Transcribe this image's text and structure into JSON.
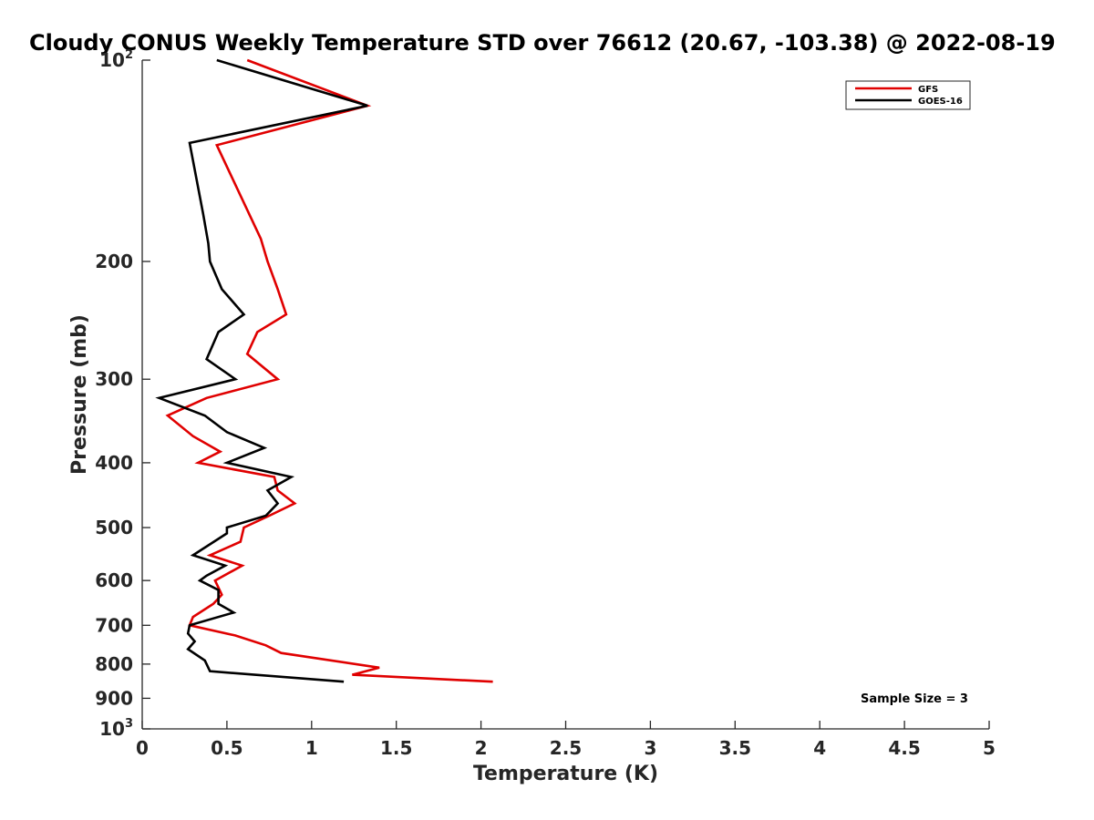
{
  "chart_data": {
    "type": "line",
    "title": "Cloudy CONUS Weekly Temperature STD over 76612 (20.67, -103.38) @ 2022-08-19",
    "xlabel": "Temperature (K)",
    "ylabel": "Pressure (mb)",
    "xlim": [
      0,
      5
    ],
    "ylim": [
      100,
      1000
    ],
    "y_scale": "log",
    "y_reversed": true,
    "grid": false,
    "legend_position": "top-right",
    "x_ticks": [
      "0",
      "0.5",
      "1",
      "1.5",
      "2",
      "2.5",
      "3",
      "3.5",
      "4",
      "4.5",
      "5"
    ],
    "y_ticks": [
      {
        "value": 100,
        "base": "10",
        "exp": "2"
      },
      {
        "value": 200,
        "label": "200"
      },
      {
        "value": 300,
        "label": "300"
      },
      {
        "value": 400,
        "label": "400"
      },
      {
        "value": 500,
        "label": "500"
      },
      {
        "value": 600,
        "label": "600"
      },
      {
        "value": 700,
        "label": "700"
      },
      {
        "value": 800,
        "label": "800"
      },
      {
        "value": 900,
        "label": "900"
      },
      {
        "value": 1000,
        "base": "10",
        "exp": "3"
      }
    ],
    "annotation": "Sample Size = 3",
    "series": [
      {
        "name": "GFS",
        "color": "#e00000",
        "points": [
          [
            0.62,
            100
          ],
          [
            1.33,
            117
          ],
          [
            0.44,
            134
          ],
          [
            0.7,
            185
          ],
          [
            0.74,
            200
          ],
          [
            0.8,
            220
          ],
          [
            0.85,
            240
          ],
          [
            0.68,
            255
          ],
          [
            0.62,
            275
          ],
          [
            0.8,
            300
          ],
          [
            0.38,
            320
          ],
          [
            0.15,
            340
          ],
          [
            0.3,
            365
          ],
          [
            0.46,
            385
          ],
          [
            0.33,
            400
          ],
          [
            0.78,
            420
          ],
          [
            0.8,
            440
          ],
          [
            0.9,
            460
          ],
          [
            0.75,
            480
          ],
          [
            0.6,
            500
          ],
          [
            0.58,
            525
          ],
          [
            0.4,
            550
          ],
          [
            0.59,
            570
          ],
          [
            0.43,
            600
          ],
          [
            0.47,
            630
          ],
          [
            0.42,
            650
          ],
          [
            0.3,
            680
          ],
          [
            0.28,
            700
          ],
          [
            0.55,
            725
          ],
          [
            0.73,
            750
          ],
          [
            0.82,
            770
          ],
          [
            1.4,
            810
          ],
          [
            1.24,
            830
          ],
          [
            2.07,
            850
          ]
        ]
      },
      {
        "name": "GOES-16",
        "color": "#000000",
        "points": [
          [
            0.44,
            100
          ],
          [
            1.33,
            117
          ],
          [
            0.28,
            133
          ],
          [
            0.36,
            170
          ],
          [
            0.39,
            188
          ],
          [
            0.4,
            200
          ],
          [
            0.47,
            220
          ],
          [
            0.6,
            240
          ],
          [
            0.45,
            255
          ],
          [
            0.38,
            280
          ],
          [
            0.55,
            300
          ],
          [
            0.1,
            320
          ],
          [
            0.37,
            340
          ],
          [
            0.5,
            360
          ],
          [
            0.72,
            380
          ],
          [
            0.5,
            400
          ],
          [
            0.88,
            420
          ],
          [
            0.74,
            440
          ],
          [
            0.8,
            460
          ],
          [
            0.73,
            480
          ],
          [
            0.5,
            500
          ],
          [
            0.5,
            510
          ],
          [
            0.3,
            550
          ],
          [
            0.49,
            570
          ],
          [
            0.38,
            590
          ],
          [
            0.34,
            600
          ],
          [
            0.45,
            620
          ],
          [
            0.45,
            650
          ],
          [
            0.54,
            670
          ],
          [
            0.28,
            700
          ],
          [
            0.27,
            720
          ],
          [
            0.31,
            740
          ],
          [
            0.27,
            760
          ],
          [
            0.37,
            790
          ],
          [
            0.4,
            820
          ],
          [
            1.19,
            850
          ]
        ]
      }
    ]
  }
}
